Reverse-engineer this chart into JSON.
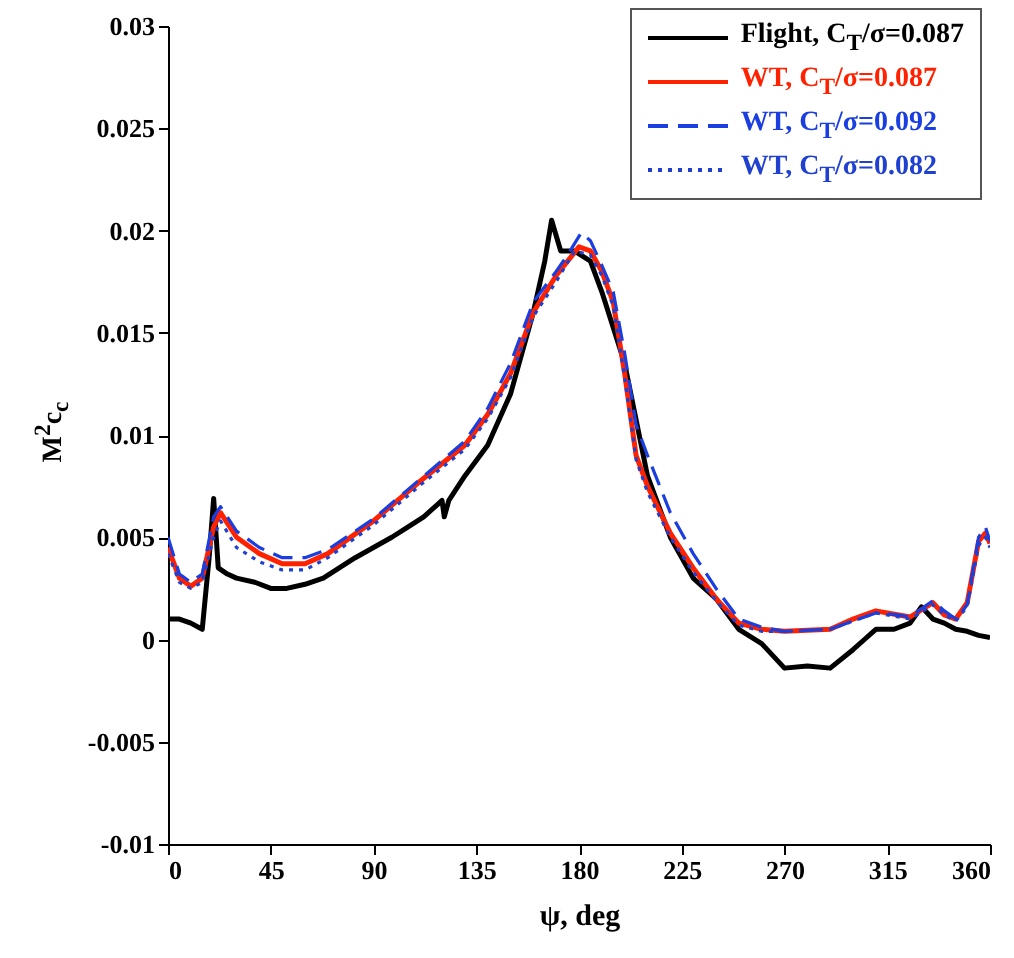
{
  "chart_data": {
    "type": "line",
    "xlabel": "ψ, deg",
    "ylabel": "M$^{2}$c$_{c}$",
    "xlim": [
      0,
      360
    ],
    "xticks": [
      0,
      45,
      90,
      135,
      180,
      225,
      270,
      315,
      360
    ],
    "ylim": [
      -0.01,
      0.03
    ],
    "yticks": [
      -0.01,
      -0.005,
      0,
      0.005,
      0.01,
      0.015,
      0.02,
      0.025,
      0.03
    ],
    "grid": false,
    "legend": "top right",
    "marker": "none",
    "series": [
      {
        "name": "Flight, C$_{T}$/σ=0.087",
        "color": "#000000",
        "line_style": "solid",
        "x": [
          0,
          5,
          10,
          15,
          18,
          20,
          22,
          26,
          30,
          38,
          45,
          52,
          60,
          68,
          75,
          82,
          90,
          98,
          105,
          112,
          118,
          120,
          121,
          123,
          130,
          140,
          150,
          160,
          165,
          168,
          172,
          178,
          185,
          190,
          200,
          210,
          220,
          230,
          240,
          250,
          260,
          270,
          280,
          290,
          300,
          305,
          310,
          318,
          325,
          330,
          335,
          340,
          345,
          350,
          355,
          360
        ],
        "values": [
          0.001,
          0.001,
          0.0008,
          0.0005,
          0.004,
          0.0069,
          0.0035,
          0.0032,
          0.003,
          0.0028,
          0.0025,
          0.0025,
          0.0027,
          0.003,
          0.0035,
          0.004,
          0.0045,
          0.005,
          0.0055,
          0.006,
          0.0066,
          0.0068,
          0.006,
          0.0068,
          0.008,
          0.0095,
          0.012,
          0.016,
          0.0185,
          0.0205,
          0.019,
          0.019,
          0.0185,
          0.017,
          0.0135,
          0.008,
          0.005,
          0.003,
          0.002,
          0.0005,
          -0.0002,
          -0.0014,
          -0.0013,
          -0.0014,
          -0.0005,
          0.0,
          0.0005,
          0.0005,
          0.0008,
          0.0016,
          0.001,
          0.0008,
          0.0005,
          0.0004,
          0.0002,
          0.0001
        ]
      },
      {
        "name": "WT, C$_{T}$/σ=0.087",
        "color": "#ff2200",
        "line_style": "solid",
        "x": [
          0,
          5,
          10,
          15,
          20,
          23,
          30,
          40,
          50,
          60,
          70,
          90,
          110,
          130,
          140,
          150,
          160,
          170,
          175,
          180,
          185,
          190,
          195,
          200,
          205,
          210,
          220,
          230,
          240,
          250,
          260,
          270,
          290,
          300,
          310,
          320,
          325,
          335,
          340,
          345,
          350,
          355,
          358,
          360
        ],
        "values": [
          0.0045,
          0.003,
          0.0026,
          0.003,
          0.0055,
          0.0062,
          0.005,
          0.0042,
          0.0037,
          0.0037,
          0.0042,
          0.0058,
          0.0077,
          0.0095,
          0.011,
          0.013,
          0.016,
          0.0178,
          0.0185,
          0.0192,
          0.019,
          0.018,
          0.0165,
          0.013,
          0.009,
          0.0075,
          0.0052,
          0.0035,
          0.002,
          0.0008,
          0.0005,
          0.0004,
          0.0005,
          0.001,
          0.0014,
          0.0012,
          0.0011,
          0.0018,
          0.0012,
          0.001,
          0.0018,
          0.0048,
          0.0052,
          0.0047
        ]
      },
      {
        "name": "WT, C$_{T}$/σ=0.092",
        "color": "#1a3ee0",
        "line_style": "dashed",
        "x": [
          0,
          5,
          10,
          15,
          20,
          23,
          30,
          40,
          50,
          60,
          70,
          90,
          110,
          130,
          140,
          150,
          160,
          170,
          175,
          181,
          185,
          190,
          195,
          200,
          205,
          210,
          220,
          230,
          240,
          250,
          260,
          270,
          290,
          300,
          310,
          320,
          325,
          335,
          340,
          345,
          350,
          355,
          358,
          360
        ],
        "values": [
          0.005,
          0.0032,
          0.0028,
          0.0032,
          0.006,
          0.0065,
          0.0053,
          0.0045,
          0.004,
          0.004,
          0.0044,
          0.0059,
          0.0078,
          0.0097,
          0.0113,
          0.0135,
          0.0165,
          0.018,
          0.0188,
          0.0199,
          0.0195,
          0.0183,
          0.017,
          0.014,
          0.0105,
          0.009,
          0.0062,
          0.0042,
          0.0025,
          0.001,
          0.0006,
          0.0004,
          0.0005,
          0.0009,
          0.0013,
          0.0012,
          0.0011,
          0.0019,
          0.0014,
          0.001,
          0.0017,
          0.005,
          0.0055,
          0.0048
        ]
      },
      {
        "name": "WT, C$_{T}$/σ=0.082",
        "color": "#2040d0",
        "line_style": "dotted",
        "x": [
          0,
          5,
          10,
          15,
          20,
          23,
          30,
          40,
          50,
          60,
          70,
          90,
          110,
          130,
          140,
          150,
          160,
          170,
          178,
          185,
          190,
          195,
          200,
          205,
          210,
          220,
          230,
          240,
          250,
          260,
          270,
          290,
          300,
          310,
          320,
          325,
          335,
          340,
          345,
          350,
          355,
          358,
          360
        ],
        "values": [
          0.0042,
          0.0028,
          0.0025,
          0.0028,
          0.005,
          0.0058,
          0.0045,
          0.0038,
          0.0034,
          0.0034,
          0.004,
          0.0056,
          0.0075,
          0.0093,
          0.0108,
          0.0128,
          0.0158,
          0.0175,
          0.019,
          0.0188,
          0.0178,
          0.0163,
          0.0128,
          0.0088,
          0.0072,
          0.005,
          0.0033,
          0.0019,
          0.0007,
          0.0004,
          0.0004,
          0.0005,
          0.0009,
          0.0013,
          0.0011,
          0.001,
          0.0017,
          0.0012,
          0.0009,
          0.0016,
          0.0046,
          0.005,
          0.0045
        ]
      }
    ]
  }
}
